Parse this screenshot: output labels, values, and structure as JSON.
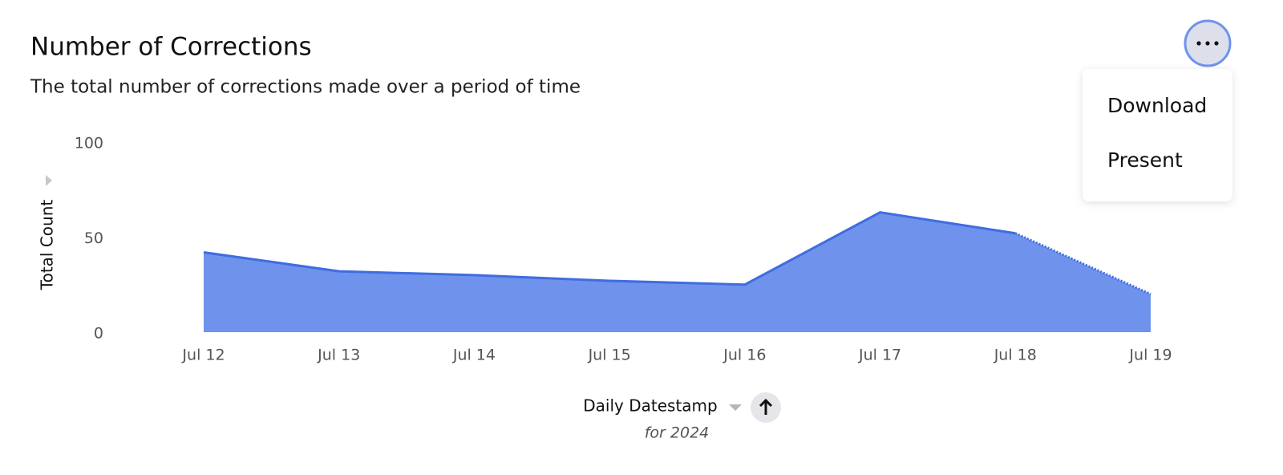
{
  "chart_data": {
    "type": "area",
    "title": "Number of Corrections",
    "subtitle": "The total number of corrections made over a period of time",
    "categories": [
      "Jul 12",
      "Jul 13",
      "Jul 14",
      "Jul 15",
      "Jul 16",
      "Jul 17",
      "Jul 18",
      "Jul 19"
    ],
    "values": [
      42,
      32,
      30,
      27,
      25,
      63,
      52,
      20
    ],
    "color": "#6f93ec",
    "line_color": "#3f6de0",
    "ylim": [
      0,
      100
    ],
    "yticks": [
      0,
      50,
      100
    ],
    "y_label": "Total Count",
    "x_label": "Daily Datestamp",
    "x_sublabel": "for 2024"
  },
  "menu": {
    "items": [
      "Download",
      "Present"
    ]
  }
}
